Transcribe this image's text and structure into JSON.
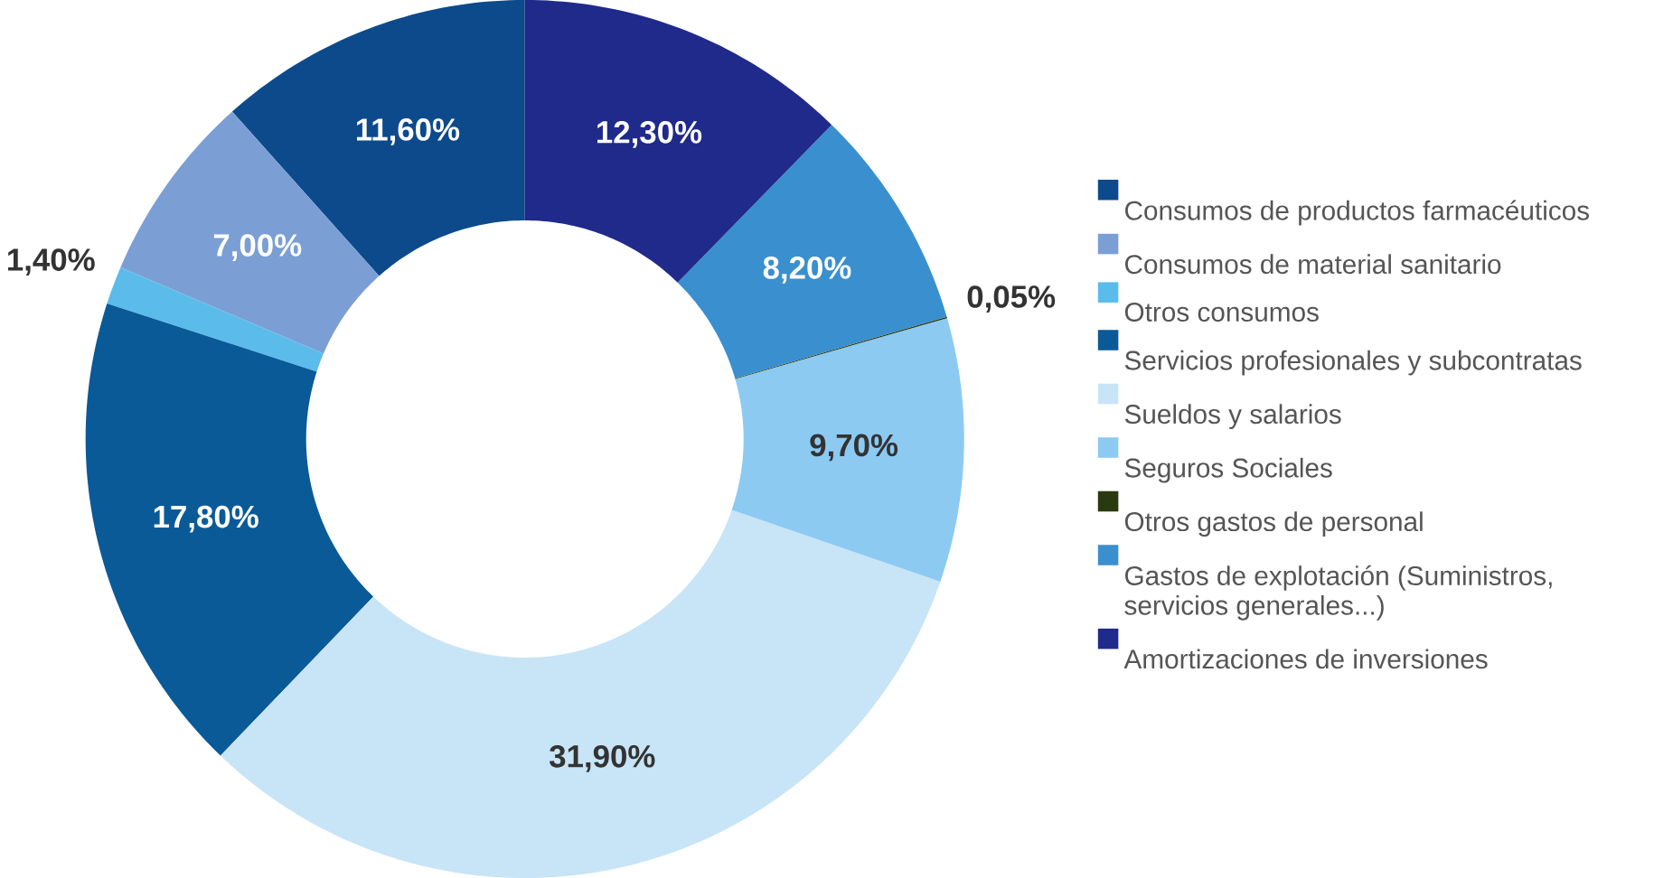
{
  "chart_data": {
    "type": "donut",
    "categories": [
      "Consumos de productos farmacéuticos",
      "Consumos de material sanitario",
      "Otros consumos",
      "Servicios profesionales y subcontratas",
      "Sueldos y salarios",
      "Seguros Sociales",
      "Otros gastos de personal",
      "Gastos de explotación (Suministros, servicios generales...)",
      "Amortizaciones de inversiones"
    ],
    "values": [
      11.6,
      7.0,
      1.4,
      17.8,
      31.9,
      9.7,
      0.05,
      8.2,
      12.3
    ],
    "value_labels": [
      "11,60%",
      "7,00%",
      "1,40%",
      "17,80%",
      "31,90%",
      "9,70%",
      "0,05%",
      "8,20%",
      "12,30%"
    ],
    "colors": [
      "#0d4a8c",
      "#7b9fd4",
      "#5bbcec",
      "#0a5a98",
      "#c8e4f7",
      "#8ccaf2",
      "#2a3a10",
      "#3a8fcf",
      "#1f2a8a"
    ],
    "legend": "right"
  }
}
